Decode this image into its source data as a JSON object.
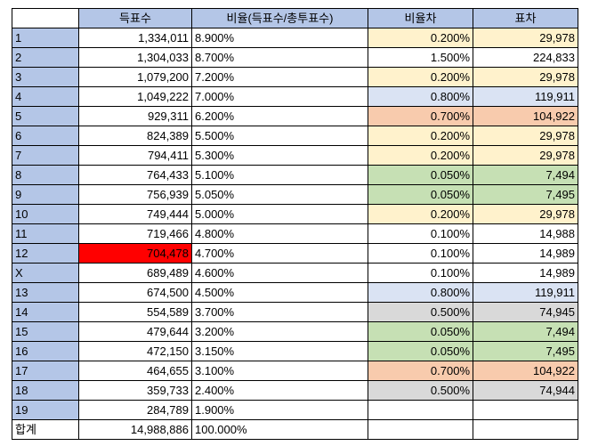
{
  "colors": {
    "header": "#b4c6e7",
    "yellow": "#fff2cc",
    "orange": "#f8cbad",
    "green": "#c6e0b4",
    "blue": "#dae3f3",
    "gray": "#d9d9d9",
    "red": "#ff0000",
    "white": "#ffffff"
  },
  "table": {
    "headers": [
      "",
      "득표수",
      "비율(득표수/총투표수)",
      "비율차",
      "표차"
    ],
    "rows": [
      {
        "rank": "1",
        "votes": "1,334,011",
        "ratio": "8.900%",
        "diff": "0.200%",
        "gap": "29,978",
        "fill": "yellow"
      },
      {
        "rank": "2",
        "votes": "1,304,033",
        "ratio": "8.700%",
        "diff": "1.500%",
        "gap": "224,833",
        "fill": ""
      },
      {
        "rank": "3",
        "votes": "1,079,200",
        "ratio": "7.200%",
        "diff": "0.200%",
        "gap": "29,978",
        "fill": "yellow"
      },
      {
        "rank": "4",
        "votes": "1,049,222",
        "ratio": "7.000%",
        "diff": "0.800%",
        "gap": "119,911",
        "fill": "blue"
      },
      {
        "rank": "5",
        "votes": "929,311",
        "ratio": "6.200%",
        "diff": "0.700%",
        "gap": "104,922",
        "fill": "orange"
      },
      {
        "rank": "6",
        "votes": "824,389",
        "ratio": "5.500%",
        "diff": "0.200%",
        "gap": "29,978",
        "fill": "yellow"
      },
      {
        "rank": "7",
        "votes": "794,411",
        "ratio": "5.300%",
        "diff": "0.200%",
        "gap": "29,978",
        "fill": "yellow"
      },
      {
        "rank": "8",
        "votes": "764,433",
        "ratio": "5.100%",
        "diff": "0.050%",
        "gap": "7,494",
        "fill": "green"
      },
      {
        "rank": "9",
        "votes": "756,939",
        "ratio": "5.050%",
        "diff": "0.050%",
        "gap": "7,495",
        "fill": "green"
      },
      {
        "rank": "10",
        "votes": "749,444",
        "ratio": "5.000%",
        "diff": "0.200%",
        "gap": "29,978",
        "fill": "yellow"
      },
      {
        "rank": "11",
        "votes": "719,466",
        "ratio": "4.800%",
        "diff": "0.100%",
        "gap": "14,988",
        "fill": ""
      },
      {
        "rank": "12",
        "votes": "704,478",
        "ratio": "4.700%",
        "diff": "0.100%",
        "gap": "14,989",
        "fill": "",
        "votes_fill": "red"
      },
      {
        "rank": "X",
        "votes": "689,489",
        "ratio": "4.600%",
        "diff": "0.100%",
        "gap": "14,989",
        "fill": ""
      },
      {
        "rank": "13",
        "votes": "674,500",
        "ratio": "4.500%",
        "diff": "0.800%",
        "gap": "119,911",
        "fill": "blue"
      },
      {
        "rank": "14",
        "votes": "554,589",
        "ratio": "3.700%",
        "diff": "0.500%",
        "gap": "74,945",
        "fill": "gray"
      },
      {
        "rank": "15",
        "votes": "479,644",
        "ratio": "3.200%",
        "diff": "0.050%",
        "gap": "7,494",
        "fill": "green"
      },
      {
        "rank": "16",
        "votes": "472,150",
        "ratio": "3.150%",
        "diff": "0.050%",
        "gap": "7,495",
        "fill": "green"
      },
      {
        "rank": "17",
        "votes": "464,655",
        "ratio": "3.100%",
        "diff": "0.700%",
        "gap": "104,922",
        "fill": "orange"
      },
      {
        "rank": "18",
        "votes": "359,733",
        "ratio": "2.400%",
        "diff": "0.500%",
        "gap": "74,944",
        "fill": "gray"
      },
      {
        "rank": "19",
        "votes": "284,789",
        "ratio": "1.900%",
        "diff": "",
        "gap": "",
        "fill": ""
      },
      {
        "rank": "합계",
        "votes": "14,988,886",
        "ratio": "100.000%",
        "diff": "",
        "gap": "",
        "fill": "",
        "plain": true
      }
    ]
  }
}
